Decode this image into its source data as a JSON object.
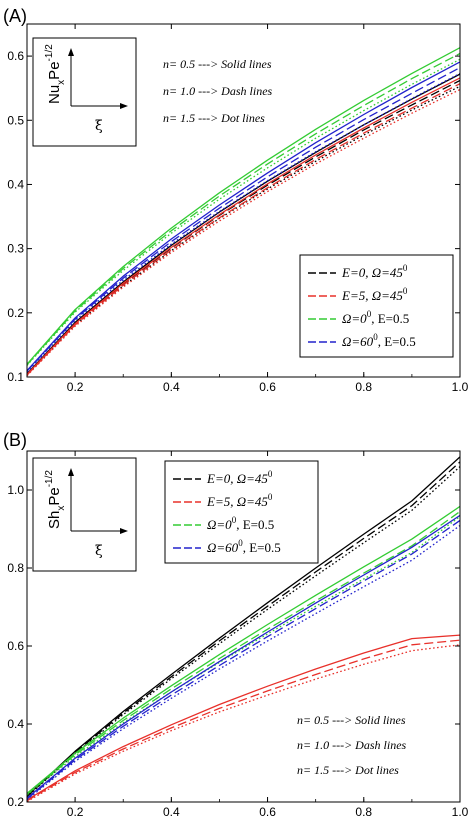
{
  "chart_data": [
    {
      "panel": "(A)",
      "type": "line",
      "xlim": [
        0.1,
        1.0
      ],
      "ylim": [
        0.1,
        0.65
      ],
      "xticks": [
        0.2,
        0.4,
        0.6,
        0.8,
        1.0
      ],
      "xtick_labels": [
        "0.2",
        "0.4",
        "0.6",
        "0.8",
        "1.0"
      ],
      "yticks": [
        0.1,
        0.2,
        0.3,
        0.4,
        0.5,
        0.6
      ],
      "ytick_labels": [
        "0.1",
        "0.2",
        "0.3",
        "0.4",
        "0.5",
        "0.6"
      ],
      "inset": {
        "ylabel": "Nu",
        "ylabel_sub": "x",
        "ylabel_rest": "Pe",
        "ylabel_sup": "-1/2",
        "xlabel": "ξ"
      },
      "notes": [
        "n= 0.5 ---> Solid lines",
        "n= 1.0 ---> Dash lines",
        "n= 1.5 ---> Dot lines"
      ],
      "legend": {
        "placement": "lower-right",
        "entries": [
          {
            "color": "#000000",
            "label": "E=0, Ω=45",
            "sup": "0",
            "tail": ""
          },
          {
            "color": "#e8302a",
            "label": "E=5, Ω=45",
            "sup": "0",
            "tail": ""
          },
          {
            "color": "#33cc33",
            "label": "Ω=0",
            "sup": "0",
            "tail": ", E=0.5"
          },
          {
            "color": "#2222cc",
            "label": "Ω=60",
            "sup": "0",
            "tail": ", E=0.5"
          }
        ]
      },
      "x": [
        0.1,
        0.2,
        0.3,
        0.4,
        0.5,
        0.6,
        0.7,
        0.8,
        0.9,
        1.0
      ],
      "series": [
        {
          "color": "#000000",
          "style": "solid",
          "values": [
            0.105,
            0.185,
            0.248,
            0.305,
            0.357,
            0.405,
            0.45,
            0.493,
            0.533,
            0.572
          ]
        },
        {
          "color": "#000000",
          "style": "dash",
          "values": [
            0.104,
            0.183,
            0.245,
            0.301,
            0.352,
            0.399,
            0.443,
            0.485,
            0.524,
            0.562
          ]
        },
        {
          "color": "#000000",
          "style": "dot",
          "values": [
            0.103,
            0.181,
            0.242,
            0.297,
            0.347,
            0.393,
            0.436,
            0.477,
            0.516,
            0.553
          ]
        },
        {
          "color": "#e8302a",
          "style": "solid",
          "values": [
            0.104,
            0.183,
            0.246,
            0.302,
            0.353,
            0.401,
            0.446,
            0.488,
            0.528,
            0.566
          ]
        },
        {
          "color": "#e8302a",
          "style": "dash",
          "values": [
            0.103,
            0.181,
            0.243,
            0.298,
            0.348,
            0.395,
            0.439,
            0.48,
            0.519,
            0.557
          ]
        },
        {
          "color": "#e8302a",
          "style": "dot",
          "values": [
            0.102,
            0.179,
            0.24,
            0.294,
            0.343,
            0.389,
            0.432,
            0.472,
            0.511,
            0.548
          ]
        },
        {
          "color": "#33cc33",
          "style": "solid",
          "values": [
            0.12,
            0.205,
            0.272,
            0.332,
            0.387,
            0.438,
            0.486,
            0.531,
            0.573,
            0.613
          ]
        },
        {
          "color": "#33cc33",
          "style": "dash",
          "values": [
            0.119,
            0.203,
            0.269,
            0.328,
            0.382,
            0.432,
            0.479,
            0.523,
            0.565,
            0.604
          ]
        },
        {
          "color": "#33cc33",
          "style": "dot",
          "values": [
            0.118,
            0.201,
            0.266,
            0.324,
            0.377,
            0.426,
            0.472,
            0.515,
            0.556,
            0.595
          ]
        },
        {
          "color": "#2222cc",
          "style": "solid",
          "values": [
            0.11,
            0.192,
            0.257,
            0.315,
            0.368,
            0.418,
            0.465,
            0.509,
            0.551,
            0.591
          ]
        },
        {
          "color": "#2222cc",
          "style": "dash",
          "values": [
            0.109,
            0.19,
            0.254,
            0.311,
            0.363,
            0.412,
            0.458,
            0.501,
            0.542,
            0.582
          ]
        },
        {
          "color": "#2222cc",
          "style": "dot",
          "values": [
            0.108,
            0.188,
            0.251,
            0.307,
            0.358,
            0.406,
            0.451,
            0.493,
            0.534,
            0.573
          ]
        }
      ]
    },
    {
      "panel": "(B)",
      "type": "line",
      "xlim": [
        0.1,
        1.0
      ],
      "ylim": [
        0.2,
        1.1
      ],
      "xticks": [
        0.2,
        0.4,
        0.6,
        0.8,
        1.0
      ],
      "xtick_labels": [
        "0.2",
        "0.4",
        "0.6",
        "0.8",
        "1.0"
      ],
      "yticks": [
        0.2,
        0.4,
        0.6,
        0.8,
        1.0
      ],
      "ytick_labels": [
        "0.2",
        "0.4",
        "0.6",
        "0.8",
        "1.0"
      ],
      "inset": {
        "ylabel": "Sh",
        "ylabel_sub": "x",
        "ylabel_rest": "Pe",
        "ylabel_sup": "-1/2",
        "xlabel": "ξ"
      },
      "notes": [
        "n= 0.5 ---> Solid lines",
        "n= 1.0 ---> Dash lines",
        "n= 1.5 ---> Dot lines"
      ],
      "legend": {
        "placement": "upper-middle",
        "entries": [
          {
            "color": "#000000",
            "label": "E=0, Ω=45",
            "sup": "0",
            "tail": ""
          },
          {
            "color": "#e8302a",
            "label": "E=5, Ω=45",
            "sup": "0",
            "tail": ""
          },
          {
            "color": "#33cc33",
            "label": "Ω=0",
            "sup": "0",
            "tail": ", E=0.5"
          },
          {
            "color": "#2222cc",
            "label": "Ω=60",
            "sup": "0",
            "tail": ", E=0.5"
          }
        ]
      },
      "x": [
        0.1,
        0.2,
        0.3,
        0.4,
        0.5,
        0.6,
        0.7,
        0.8,
        0.9,
        1.0
      ],
      "series": [
        {
          "color": "#000000",
          "style": "solid",
          "values": [
            0.215,
            0.33,
            0.432,
            0.527,
            0.62,
            0.711,
            0.8,
            0.887,
            0.972,
            1.085
          ]
        },
        {
          "color": "#000000",
          "style": "dash",
          "values": [
            0.214,
            0.327,
            0.428,
            0.521,
            0.613,
            0.702,
            0.79,
            0.876,
            0.96,
            1.072
          ]
        },
        {
          "color": "#000000",
          "style": "dot",
          "values": [
            0.213,
            0.324,
            0.424,
            0.516,
            0.606,
            0.694,
            0.78,
            0.865,
            0.948,
            1.06
          ]
        },
        {
          "color": "#e8302a",
          "style": "solid",
          "values": [
            0.205,
            0.28,
            0.342,
            0.398,
            0.45,
            0.497,
            0.541,
            0.582,
            0.619,
            0.628
          ]
        },
        {
          "color": "#e8302a",
          "style": "dash",
          "values": [
            0.203,
            0.276,
            0.336,
            0.39,
            0.44,
            0.485,
            0.527,
            0.567,
            0.603,
            0.615
          ]
        },
        {
          "color": "#e8302a",
          "style": "dot",
          "values": [
            0.201,
            0.272,
            0.33,
            0.383,
            0.431,
            0.474,
            0.515,
            0.553,
            0.588,
            0.603
          ]
        },
        {
          "color": "#33cc33",
          "style": "solid",
          "values": [
            0.222,
            0.325,
            0.415,
            0.498,
            0.578,
            0.655,
            0.73,
            0.803,
            0.874,
            0.958
          ]
        },
        {
          "color": "#33cc33",
          "style": "dash",
          "values": [
            0.22,
            0.321,
            0.409,
            0.49,
            0.568,
            0.643,
            0.716,
            0.787,
            0.857,
            0.945
          ]
        },
        {
          "color": "#33cc33",
          "style": "dot",
          "values": [
            0.218,
            0.317,
            0.403,
            0.482,
            0.558,
            0.631,
            0.702,
            0.772,
            0.84,
            0.932
          ]
        },
        {
          "color": "#2222cc",
          "style": "solid",
          "values": [
            0.21,
            0.312,
            0.4,
            0.482,
            0.56,
            0.636,
            0.71,
            0.782,
            0.853,
            0.935
          ]
        },
        {
          "color": "#2222cc",
          "style": "dash",
          "values": [
            0.208,
            0.308,
            0.394,
            0.474,
            0.55,
            0.624,
            0.696,
            0.767,
            0.836,
            0.922
          ]
        },
        {
          "color": "#2222cc",
          "style": "dot",
          "values": [
            0.206,
            0.304,
            0.388,
            0.466,
            0.541,
            0.613,
            0.683,
            0.752,
            0.82,
            0.909
          ]
        }
      ]
    }
  ]
}
